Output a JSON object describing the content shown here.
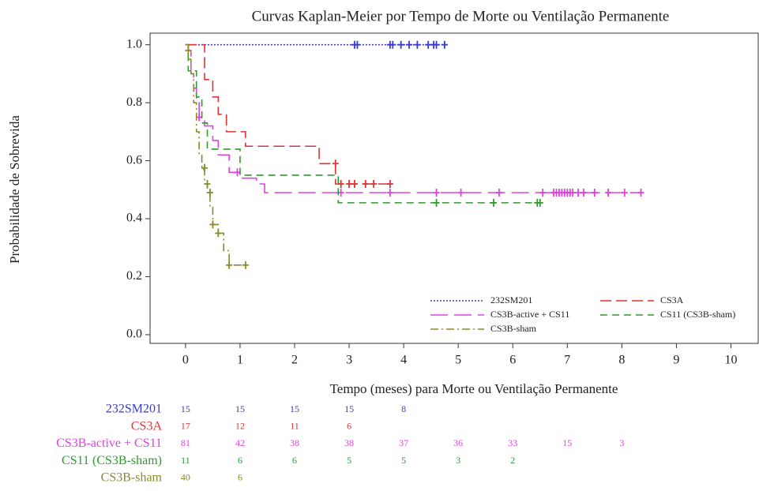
{
  "chart_data": {
    "type": "kaplan-meier",
    "title": "Curvas Kaplan-Meier por Tempo de Morte ou Ventilação Permanente",
    "x_label": "Tempo (meses) para Morte ou Ventilação Permanente",
    "y_label": "Probabilidade de Sobrevida",
    "xlim": [
      -0.65,
      10.5
    ],
    "ylim": [
      -0.03,
      1.04
    ],
    "xticks": [
      0,
      1,
      2,
      3,
      4,
      5,
      6,
      7,
      8,
      9,
      10
    ],
    "yticks": [
      {
        "value": 0,
        "label": "0.0"
      },
      {
        "value": 0.2,
        "label": "0.2"
      },
      {
        "value": 0.4,
        "label": "0.4"
      },
      {
        "value": 0.6,
        "label": "0.6"
      },
      {
        "value": 0.8,
        "label": "0.8"
      },
      {
        "value": 1,
        "label": "1.0"
      }
    ],
    "series": [
      {
        "name": "232SM201",
        "color": "#3a3acc",
        "x": [
          0,
          4.75
        ],
        "values": [
          1,
          1
        ],
        "censor_x": [
          3.1,
          3.15,
          3.75,
          3.8,
          3.95,
          4.1,
          4.25,
          4.45,
          4.55,
          4.6,
          4.75
        ],
        "censor_values": [
          1,
          1,
          1,
          1,
          1,
          1,
          1,
          1,
          1,
          1,
          1
        ]
      },
      {
        "name": "CS3A",
        "color": "#dd3333",
        "x": [
          0,
          0.35,
          0.5,
          0.6,
          0.75,
          1.1,
          2.45,
          2.75,
          3.75
        ],
        "values": [
          1,
          0.88,
          0.82,
          0.76,
          0.7,
          0.65,
          0.59,
          0.52,
          0.52
        ],
        "censor_x": [
          2.75,
          2.85,
          3.0,
          3.1,
          3.3,
          3.45,
          3.75
        ],
        "censor_values": [
          0.59,
          0.52,
          0.52,
          0.52,
          0.52,
          0.52,
          0.52
        ]
      },
      {
        "name": "CS3B-active + CS11",
        "color": "#e040e0",
        "x": [
          0,
          0.05,
          0.1,
          0.15,
          0.2,
          0.25,
          0.35,
          0.5,
          0.6,
          0.8,
          1.0,
          1.3,
          1.45,
          8.35
        ],
        "values": [
          1,
          0.98,
          0.9,
          0.85,
          0.8,
          0.75,
          0.72,
          0.67,
          0.62,
          0.56,
          0.54,
          0.52,
          0.49,
          0.49
        ],
        "censor_x": [
          0.25,
          0.95,
          2.85,
          3.75,
          4.6,
          5.05,
          5.75,
          6.55,
          6.75,
          6.8,
          6.85,
          6.9,
          6.95,
          7.0,
          7.05,
          7.1,
          7.2,
          7.3,
          7.5,
          7.75,
          8.05,
          8.35
        ],
        "censor_values": [
          0.75,
          0.56,
          0.49,
          0.49,
          0.49,
          0.49,
          0.49,
          0.49,
          0.49,
          0.49,
          0.49,
          0.49,
          0.49,
          0.49,
          0.49,
          0.49,
          0.49,
          0.49,
          0.49,
          0.49,
          0.49,
          0.49
        ]
      },
      {
        "name": "CS11 (CS3B-sham)",
        "color": "#2e9a2e",
        "x": [
          0,
          0.05,
          0.2,
          0.3,
          0.4,
          1.0,
          2.8,
          6.5
        ],
        "values": [
          1,
          0.91,
          0.82,
          0.73,
          0.64,
          0.55,
          0.455,
          0.455
        ],
        "censor_x": [
          4.6,
          5.65,
          6.45,
          6.5
        ],
        "censor_values": [
          0.455,
          0.455,
          0.455,
          0.455
        ]
      },
      {
        "name": "CS3B-sham",
        "color": "#8a8a2a",
        "x": [
          0,
          0.05,
          0.1,
          0.15,
          0.2,
          0.25,
          0.3,
          0.35,
          0.4,
          0.45,
          0.5,
          0.6,
          0.7,
          0.8,
          1.1
        ],
        "values": [
          1,
          0.95,
          0.9,
          0.8,
          0.7,
          0.62,
          0.57,
          0.52,
          0.49,
          0.44,
          0.38,
          0.35,
          0.29,
          0.24,
          0.24
        ],
        "censor_x": [
          0.05,
          0.35,
          0.4,
          0.45,
          0.5,
          0.6,
          0.8,
          1.1
        ],
        "censor_values": [
          0.98,
          0.575,
          0.52,
          0.49,
          0.38,
          0.35,
          0.24,
          0.24
        ]
      }
    ],
    "at_risk": [
      {
        "label": "232SM201",
        "color": "#3a3acc",
        "counts": [
          15,
          15,
          15,
          15,
          8
        ]
      },
      {
        "label": "CS3A",
        "color": "#dd3333",
        "counts": [
          17,
          12,
          11,
          6
        ]
      },
      {
        "label": "CS3B-active + CS11",
        "color": "#e040e0",
        "counts": [
          81,
          42,
          38,
          38,
          37,
          36,
          33,
          15,
          3
        ]
      },
      {
        "label": "CS11 (CS3B-sham)",
        "color": "#2e9a2e",
        "counts": [
          11,
          6,
          6,
          5,
          5,
          3,
          2
        ]
      },
      {
        "label": "CS3B-sham",
        "color": "#8a8a2a",
        "counts": [
          40,
          6
        ]
      }
    ]
  }
}
